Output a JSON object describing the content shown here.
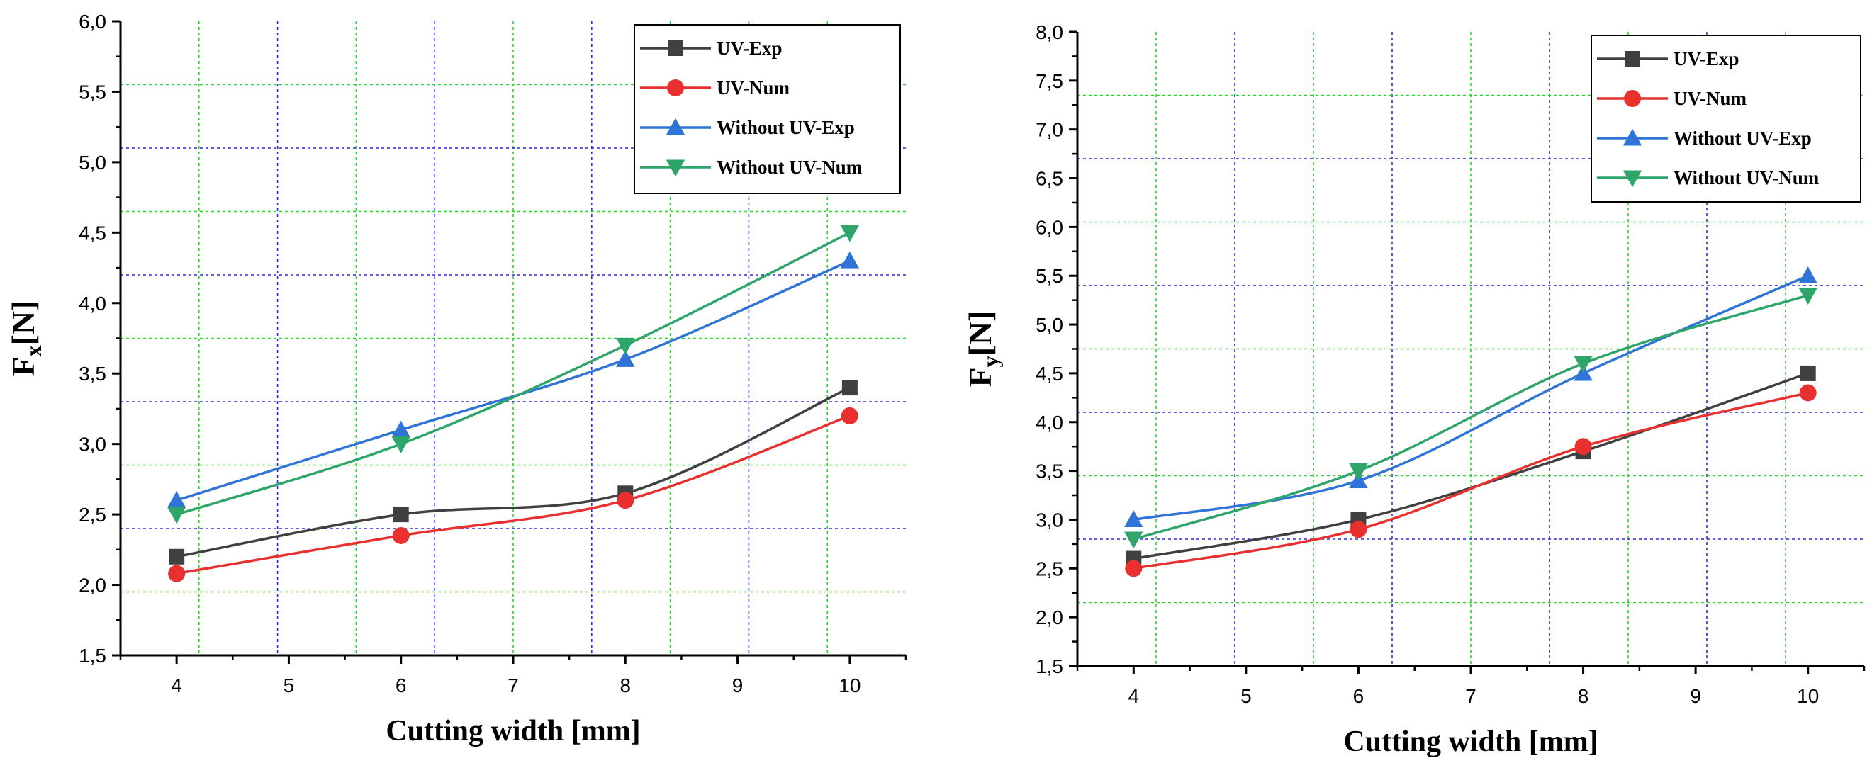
{
  "colors": {
    "uv_exp": "#404040",
    "uv_num": "#e8312f",
    "without_uv_exp": "#2f74d6",
    "without_uv_num": "#2fa56a",
    "grid_green": "#2fd32f",
    "grid_blue": "#2c2cd6"
  },
  "chart_data": [
    {
      "type": "line",
      "title": "",
      "xlabel": "Cutting width [mm]",
      "ylabel_main": "F",
      "ylabel_sub": "x",
      "ylabel_unit": "[N]",
      "xlim": [
        3.5,
        10.5
      ],
      "ylim": [
        1.5,
        6.0
      ],
      "xticks": [
        4,
        5,
        6,
        7,
        8,
        9,
        10
      ],
      "xtick_labels": [
        "4",
        "5",
        "6",
        "7",
        "8",
        "9",
        "10"
      ],
      "yticks": [
        1.5,
        2.0,
        2.5,
        3.0,
        3.5,
        4.0,
        4.5,
        5.0,
        5.5,
        6.0
      ],
      "ytick_labels": [
        "1,5",
        "2,0",
        "2,5",
        "3,0",
        "3,5",
        "4,0",
        "4,5",
        "5,0",
        "5,5",
        "6,0"
      ],
      "grid_green_x": [
        4.2,
        5.6,
        7.0,
        8.4,
        9.8
      ],
      "grid_blue_x": [
        4.9,
        6.3,
        7.7,
        9.1
      ],
      "grid_green_y": [
        1.95,
        2.85,
        3.75,
        4.65,
        5.55
      ],
      "grid_blue_y": [
        2.4,
        3.3,
        4.2,
        5.1
      ],
      "legend_position": "top-right",
      "x": [
        4,
        6,
        8,
        10
      ],
      "series": [
        {
          "name": "UV-Exp",
          "color_key": "uv_exp",
          "marker": "square",
          "values": [
            2.2,
            2.5,
            2.65,
            3.4
          ]
        },
        {
          "name": "UV-Num",
          "color_key": "uv_num",
          "marker": "circle",
          "values": [
            2.08,
            2.35,
            2.6,
            3.2
          ]
        },
        {
          "name": "Without UV-Exp",
          "color_key": "without_uv_exp",
          "marker": "triangle-up",
          "values": [
            2.6,
            3.1,
            3.6,
            4.3
          ]
        },
        {
          "name": "Without UV-Num",
          "color_key": "without_uv_num",
          "marker": "triangle-down",
          "values": [
            2.5,
            3.0,
            3.7,
            4.5
          ]
        }
      ]
    },
    {
      "type": "line",
      "title": "",
      "xlabel": "Cutting width [mm]",
      "ylabel_main": "F",
      "ylabel_sub": "y",
      "ylabel_unit": "[N]",
      "xlim": [
        3.5,
        10.5
      ],
      "ylim": [
        1.5,
        8.0
      ],
      "xticks": [
        4,
        5,
        6,
        7,
        8,
        9,
        10
      ],
      "xtick_labels": [
        "4",
        "5",
        "6",
        "7",
        "8",
        "9",
        "10"
      ],
      "yticks": [
        1.5,
        2.0,
        2.5,
        3.0,
        3.5,
        4.0,
        4.5,
        5.0,
        5.5,
        6.0,
        6.5,
        7.0,
        7.5,
        8.0
      ],
      "ytick_labels": [
        "1,5",
        "2,0",
        "2,5",
        "3,0",
        "3,5",
        "4,0",
        "4,5",
        "5,0",
        "5,5",
        "6,0",
        "6,5",
        "7,0",
        "7,5",
        "8,0"
      ],
      "grid_green_x": [
        4.2,
        5.6,
        7.0,
        8.4,
        9.8
      ],
      "grid_blue_x": [
        4.9,
        6.3,
        7.7,
        9.1
      ],
      "grid_green_y": [
        2.15,
        3.45,
        4.75,
        6.05,
        7.35
      ],
      "grid_blue_y": [
        2.8,
        4.1,
        5.4,
        6.7
      ],
      "legend_position": "top-right",
      "x": [
        4,
        6,
        8,
        10
      ],
      "series": [
        {
          "name": "UV-Exp",
          "color_key": "uv_exp",
          "marker": "square",
          "values": [
            2.6,
            3.0,
            3.7,
            4.5
          ]
        },
        {
          "name": "UV-Num",
          "color_key": "uv_num",
          "marker": "circle",
          "values": [
            2.5,
            2.9,
            3.75,
            4.3
          ]
        },
        {
          "name": "Without UV-Exp",
          "color_key": "without_uv_exp",
          "marker": "triangle-up",
          "values": [
            3.0,
            3.4,
            4.5,
            5.5
          ]
        },
        {
          "name": "Without UV-Num",
          "color_key": "without_uv_num",
          "marker": "triangle-down",
          "values": [
            2.8,
            3.5,
            4.6,
            5.3
          ]
        }
      ]
    }
  ]
}
